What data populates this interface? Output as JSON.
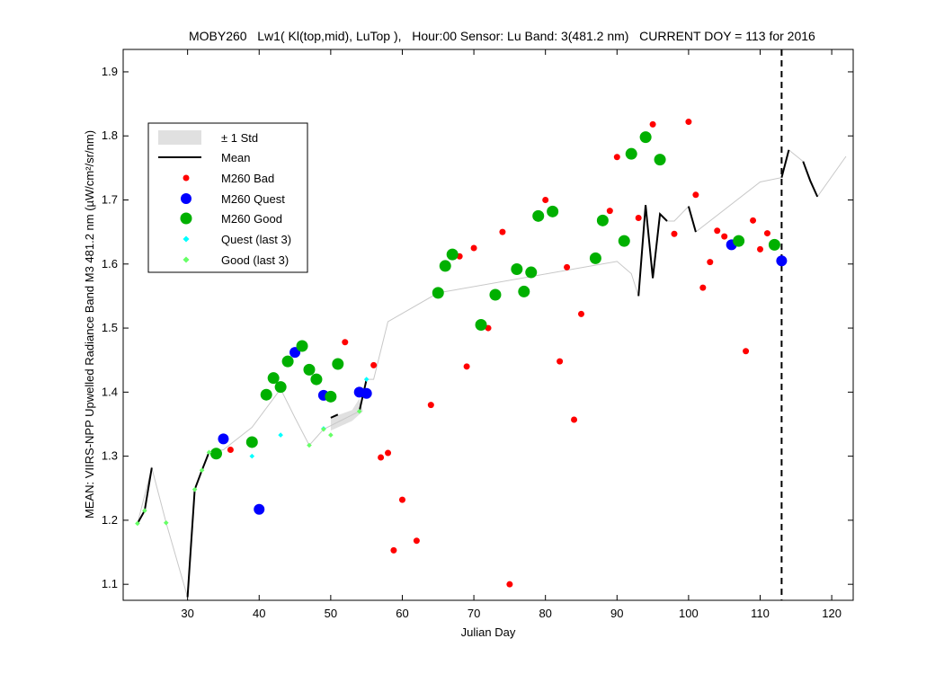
{
  "chart_data": {
    "type": "scatter",
    "title": "MOBY260   Lw1( Kl(top,mid), LuTop ),   Hour:00 Sensor: Lu Band: 3(481.2 nm)   CURRENT DOY = 113 for 2016",
    "xlabel": "Julian Day",
    "ylabel": "MEAN: VIIRS-NPP Upwelled Radiance Band M3 481.2 nm (µW/cm²/sr/nm)",
    "xlim": [
      21,
      123
    ],
    "ylim": [
      1.075,
      1.935
    ],
    "x_ticks": [
      30,
      40,
      50,
      60,
      70,
      80,
      90,
      100,
      110,
      120
    ],
    "y_ticks": [
      1.1,
      1.2,
      1.3,
      1.4,
      1.5,
      1.6,
      1.7,
      1.8,
      1.9
    ],
    "current_doy": 113,
    "legend_position": "top-left",
    "legend": {
      "std": "± 1 Std",
      "mean": "Mean",
      "bad": "M260 Bad",
      "quest": "M260 Quest",
      "good": "M260 Good",
      "quest_last3": "Quest (last 3)",
      "good_last3": "Good (last 3)"
    },
    "colors": {
      "bad": "#ff0000",
      "quest": "#0000ff",
      "good": "#00b000",
      "quest_last3": "#00ffff",
      "good_last3": "#66ff66",
      "mean": "#000000",
      "trend": "#c8c8c8",
      "std_band": "#e0e0e0"
    },
    "series": [
      {
        "name": "M260 Bad",
        "points": [
          [
            36,
            1.31
          ],
          [
            52,
            1.478
          ],
          [
            56,
            1.442
          ],
          [
            57,
            1.298
          ],
          [
            58,
            1.305
          ],
          [
            58.8,
            1.153
          ],
          [
            60,
            1.232
          ],
          [
            62,
            1.168
          ],
          [
            64,
            1.38
          ],
          [
            68,
            1.612
          ],
          [
            69,
            1.44
          ],
          [
            70,
            1.625
          ],
          [
            72,
            1.5
          ],
          [
            74,
            1.65
          ],
          [
            75,
            1.1
          ],
          [
            80,
            1.7
          ],
          [
            82,
            1.448
          ],
          [
            83,
            1.595
          ],
          [
            84,
            1.357
          ],
          [
            85,
            1.522
          ],
          [
            89,
            1.683
          ],
          [
            90,
            1.767
          ],
          [
            93,
            1.672
          ],
          [
            95,
            1.818
          ],
          [
            98,
            1.647
          ],
          [
            100,
            1.822
          ],
          [
            101,
            1.708
          ],
          [
            102,
            1.563
          ],
          [
            103,
            1.603
          ],
          [
            104,
            1.652
          ],
          [
            105,
            1.643
          ],
          [
            108,
            1.464
          ],
          [
            109,
            1.668
          ],
          [
            110,
            1.623
          ],
          [
            111,
            1.648
          ]
        ]
      },
      {
        "name": "M260 Quest",
        "points": [
          [
            35,
            1.327
          ],
          [
            40,
            1.217
          ],
          [
            45,
            1.462
          ],
          [
            49,
            1.395
          ],
          [
            54,
            1.4
          ],
          [
            55,
            1.398
          ],
          [
            106,
            1.63
          ],
          [
            113,
            1.605
          ]
        ]
      },
      {
        "name": "M260 Good",
        "points": [
          [
            34,
            1.304
          ],
          [
            39,
            1.322
          ],
          [
            41,
            1.396
          ],
          [
            42,
            1.422
          ],
          [
            43,
            1.408
          ],
          [
            44,
            1.448
          ],
          [
            46,
            1.472
          ],
          [
            47,
            1.435
          ],
          [
            48,
            1.42
          ],
          [
            50,
            1.393
          ],
          [
            51,
            1.444
          ],
          [
            65,
            1.555
          ],
          [
            66,
            1.597
          ],
          [
            67,
            1.615
          ],
          [
            71,
            1.505
          ],
          [
            73,
            1.552
          ],
          [
            76,
            1.592
          ],
          [
            77,
            1.557
          ],
          [
            78,
            1.587
          ],
          [
            79,
            1.675
          ],
          [
            81,
            1.682
          ],
          [
            87,
            1.609
          ],
          [
            88,
            1.668
          ],
          [
            91,
            1.636
          ],
          [
            92,
            1.772
          ],
          [
            94,
            1.798
          ],
          [
            96,
            1.763
          ],
          [
            107,
            1.636
          ],
          [
            112,
            1.63
          ]
        ]
      },
      {
        "name": "Quest (last 3)",
        "points": [
          [
            39,
            1.3
          ],
          [
            43,
            1.333
          ],
          [
            49,
            1.343
          ],
          [
            55,
            1.42
          ]
        ]
      },
      {
        "name": "Good (last 3)",
        "points": [
          [
            23,
            1.195
          ],
          [
            24,
            1.215
          ],
          [
            27,
            1.196
          ],
          [
            31,
            1.248
          ],
          [
            32,
            1.278
          ],
          [
            33,
            1.306
          ],
          [
            47,
            1.317
          ],
          [
            49,
            1.342
          ],
          [
            50,
            1.333
          ],
          [
            54,
            1.37
          ]
        ]
      }
    ],
    "mean_segments": [
      [
        [
          23,
          1.195
        ],
        [
          24,
          1.215
        ],
        [
          25,
          1.282
        ]
      ],
      [
        [
          30,
          1.08
        ],
        [
          31,
          1.248
        ],
        [
          32,
          1.278
        ],
        [
          33,
          1.306
        ]
      ],
      [
        [
          50,
          1.36
        ],
        [
          51,
          1.365
        ]
      ],
      [
        [
          54,
          1.37
        ],
        [
          55,
          1.42
        ]
      ],
      [
        [
          93,
          1.55
        ],
        [
          94,
          1.692
        ],
        [
          95,
          1.578
        ],
        [
          96,
          1.678
        ],
        [
          97,
          1.667
        ]
      ],
      [
        [
          100,
          1.69
        ],
        [
          101,
          1.65
        ]
      ],
      [
        [
          113,
          1.735
        ],
        [
          114,
          1.778
        ]
      ],
      [
        [
          116,
          1.76
        ],
        [
          117,
          1.73
        ],
        [
          118,
          1.705
        ]
      ]
    ],
    "trend_line": [
      [
        23,
        1.195
      ],
      [
        25,
        1.282
      ],
      [
        27,
        1.196
      ],
      [
        30,
        1.08
      ],
      [
        31,
        1.248
      ],
      [
        33,
        1.306
      ],
      [
        35,
        1.31
      ],
      [
        39,
        1.345
      ],
      [
        43,
        1.405
      ],
      [
        45,
        1.36
      ],
      [
        47,
        1.317
      ],
      [
        49,
        1.342
      ],
      [
        54,
        1.37
      ],
      [
        55,
        1.42
      ],
      [
        56,
        1.42
      ],
      [
        58,
        1.51
      ],
      [
        65,
        1.555
      ],
      [
        90,
        1.604
      ],
      [
        92,
        1.585
      ],
      [
        93,
        1.55
      ],
      [
        94,
        1.692
      ],
      [
        95,
        1.578
      ],
      [
        96,
        1.678
      ],
      [
        97,
        1.667
      ],
      [
        98,
        1.667
      ],
      [
        100,
        1.69
      ],
      [
        101,
        1.65
      ],
      [
        110,
        1.728
      ],
      [
        113,
        1.735
      ],
      [
        114,
        1.778
      ],
      [
        116,
        1.76
      ],
      [
        118,
        1.705
      ],
      [
        122,
        1.768
      ]
    ],
    "std_band": [
      [
        50,
        1.36
      ],
      [
        53,
        1.372
      ],
      [
        54,
        1.39
      ],
      [
        54.5,
        1.37
      ],
      [
        53,
        1.355
      ],
      [
        50,
        1.34
      ]
    ]
  }
}
